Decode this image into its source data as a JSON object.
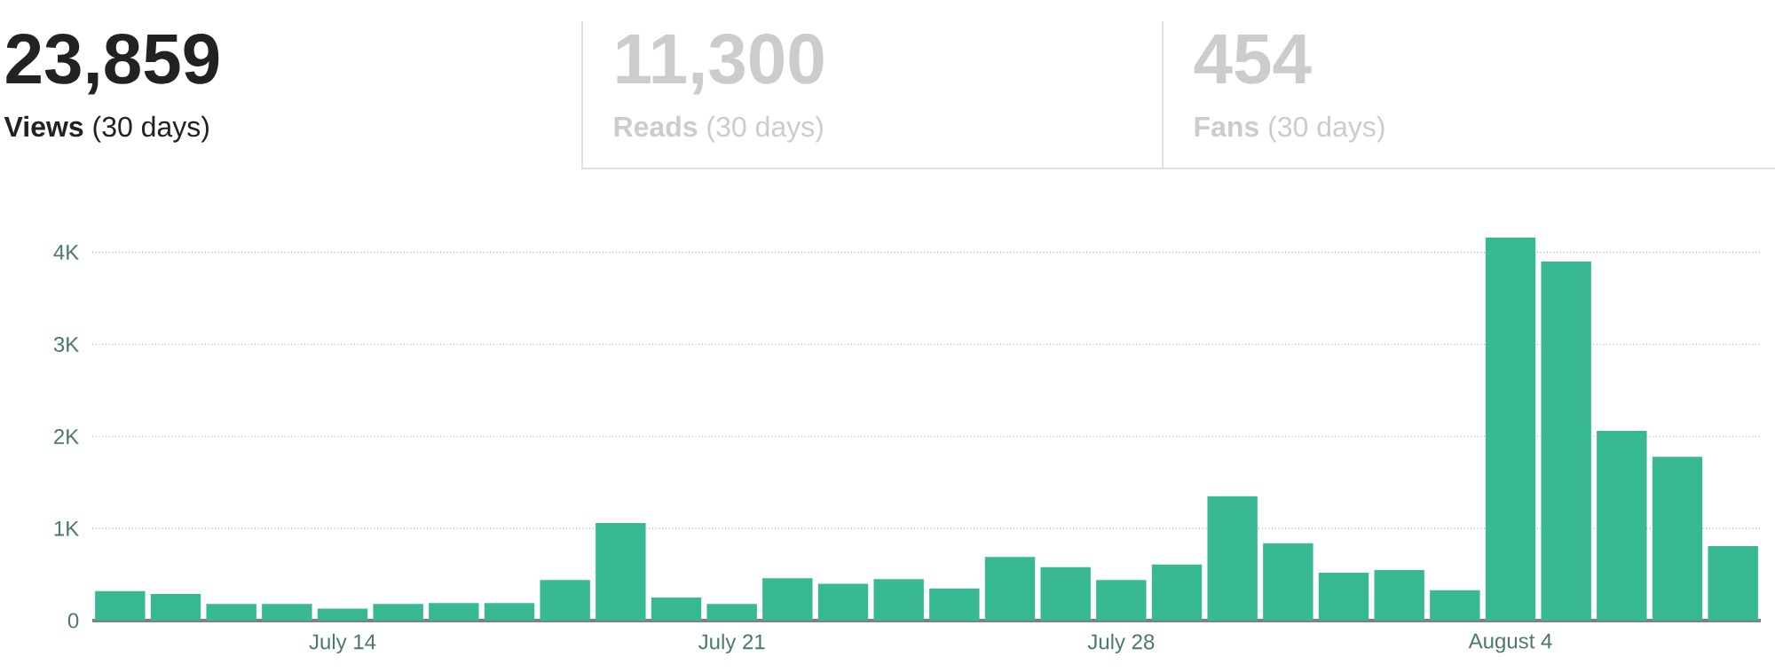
{
  "chart_data": {
    "type": "bar",
    "annotations": [
      "23,859",
      "**Views** (30 days)",
      "11,300",
      "**Reads** (30 days)",
      "454",
      "**Fans** (30 days)"
    ],
    "categories": [
      null,
      null,
      null,
      null,
      "July 14",
      null,
      null,
      null,
      null,
      null,
      null,
      "July 21",
      null,
      null,
      null,
      null,
      null,
      null,
      "July 28",
      null,
      null,
      null,
      null,
      null,
      null,
      "August 4",
      null,
      null,
      null,
      null
    ],
    "values": [
      320,
      290,
      180,
      180,
      130,
      180,
      190,
      190,
      440,
      1060,
      250,
      180,
      460,
      400,
      450,
      350,
      690,
      580,
      440,
      610,
      1350,
      840,
      520,
      550,
      330,
      4160,
      3900,
      2060,
      1780,
      810
    ],
    "color": "#38b993",
    "ylim": [
      0,
      4160
    ],
    "yticks": [
      0,
      {
        "value": 1000,
        "label": "1K"
      },
      {
        "value": 2000,
        "label": "2K"
      },
      {
        "value": 3000,
        "label": "3K"
      },
      {
        "value": 4000,
        "label": "4K"
      }
    ],
    "grid": "y"
  }
}
